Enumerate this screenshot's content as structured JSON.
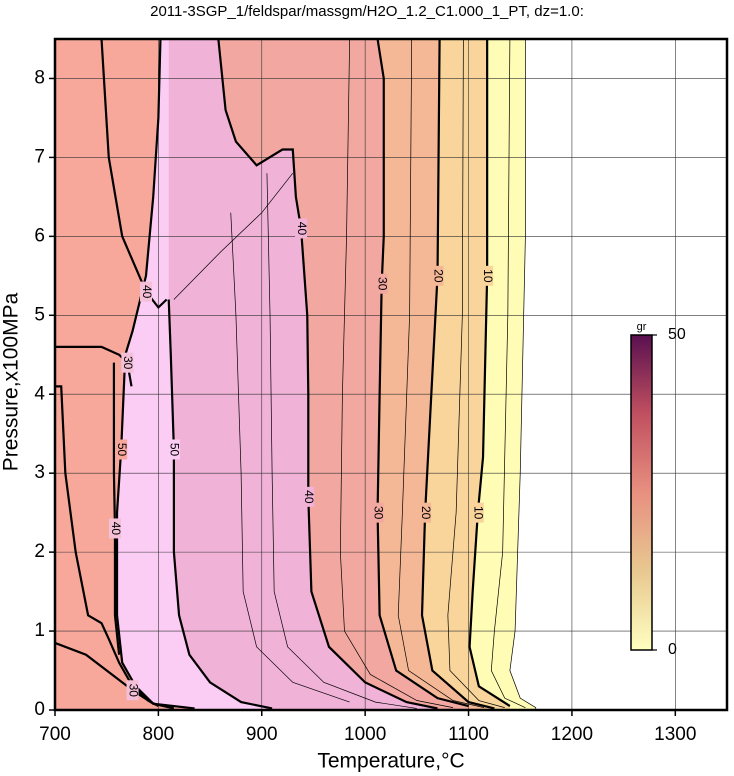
{
  "chart_data": {
    "type": "contour",
    "title": "2011-3SGP_1/feldspar/massgm/H2O_1.2_C1.000_1_PT, dz=1.0:",
    "x_label": "Temperature,°C",
    "y_label": "Pressure,x100MPa",
    "xlim": [
      700,
      1350
    ],
    "ylim": [
      0,
      8.5
    ],
    "xticks": [
      700,
      800,
      900,
      1000,
      1100,
      1200,
      1300
    ],
    "yticks": [
      0,
      1,
      2,
      3,
      4,
      5,
      6,
      7,
      8
    ],
    "grid": true,
    "colorbar": {
      "label": "gr",
      "lim": [
        0,
        50
      ],
      "ticks": [
        0,
        50
      ],
      "colors": [
        "#ffffc0",
        "#e8c890",
        "#e89080",
        "#c05060",
        "#5a1050"
      ]
    },
    "contours": [
      {
        "level": 0,
        "fill": "#fffcb5",
        "x": [
          1155,
          1155,
          1150,
          1145,
          1140,
          1150,
          1165,
          1165
        ],
        "y": [
          8.5,
          6,
          3,
          1,
          0.5,
          0.15,
          0.03,
          0
        ]
      },
      {
        "level": 5,
        "x": [
          1140,
          1138,
          1133,
          1125,
          1122,
          1135,
          1155
        ],
        "y": [
          8.5,
          5,
          2,
          1,
          0.5,
          0.15,
          0.03
        ]
      },
      {
        "level": 10,
        "fill": "#f9d59c",
        "x": [
          1118,
          1118,
          1114,
          1109,
          1104,
          1101,
          1110,
          1140
        ],
        "y": [
          8.5,
          5.5,
          3.2,
          2.5,
          1.5,
          0.8,
          0.3,
          0.05
        ]
      },
      {
        "level": 15,
        "x": [
          1095,
          1094,
          1088,
          1080,
          1082,
          1110,
          1135
        ],
        "y": [
          8.5,
          5,
          2.5,
          1.2,
          0.5,
          0.12,
          0.03
        ]
      },
      {
        "level": 20,
        "fill": "#f5b896",
        "x": [
          1072,
          1070,
          1064,
          1058,
          1055,
          1065,
          1100,
          1125
        ],
        "y": [
          8.5,
          5.5,
          4,
          2.5,
          1.2,
          0.5,
          0.1,
          0.02
        ]
      },
      {
        "level": 25,
        "x": [
          1045,
          1043,
          1036,
          1032,
          1042,
          1085,
          1115
        ],
        "y": [
          8.5,
          5,
          2.5,
          1.2,
          0.5,
          0.12,
          0.03
        ]
      },
      {
        "level": 30,
        "fill": "#f2a8a0",
        "x": [
          1012,
          1018,
          1018,
          1016,
          1014,
          1012,
          1014,
          1030,
          1070,
          1100
        ],
        "y": [
          8.5,
          8,
          6,
          5.4,
          4,
          2.5,
          1.2,
          0.5,
          0.15,
          0.05
        ]
      },
      {
        "level": 35,
        "x": [
          985,
          982,
          978,
          976,
          980,
          1005,
          1050,
          1085
        ],
        "y": [
          8.5,
          6,
          4,
          2,
          1,
          0.45,
          0.12,
          0.03
        ]
      },
      {
        "level": 40,
        "fill": "#f1b2d8",
        "x": [
          858,
          865,
          875,
          895,
          920,
          930,
          933,
          938,
          944,
          945,
          945,
          948,
          965,
          1000,
          1040,
          1070
        ],
        "y": [
          8.5,
          7.6,
          7.2,
          6.9,
          7.1,
          7.1,
          6.5,
          6.1,
          5,
          4,
          2.7,
          1.5,
          0.8,
          0.35,
          0.1,
          0.02
        ]
      },
      {
        "level": 45,
        "x": [
          905,
          908,
          910,
          912,
          925,
          960,
          1010,
          1050
        ],
        "y": [
          6.8,
          5,
          3,
          1.5,
          0.8,
          0.35,
          0.1,
          0.02
        ]
      },
      {
        "level": 47,
        "x": [
          870,
          875,
          880,
          882,
          895,
          930,
          985
        ],
        "y": [
          6.3,
          5,
          3,
          1.5,
          0.8,
          0.35,
          0.1
        ]
      },
      {
        "level": 50,
        "fill": "#fbcdf4",
        "x": [
          810,
          812,
          815,
          815,
          820,
          830,
          850,
          880,
          910
        ],
        "y": [
          5.2,
          4.5,
          3.3,
          2,
          1.2,
          0.7,
          0.35,
          0.1,
          0.02
        ]
      },
      {
        "level": 50,
        "fill": "#f7a89a",
        "x": [
          802,
          800,
          795,
          788,
          775,
          768,
          764,
          760,
          760,
          765,
          778,
          795,
          835
        ],
        "y": [
          8.5,
          7.5,
          6.5,
          5.5,
          4.8,
          4.5,
          3.3,
          2.5,
          1.2,
          0.6,
          0.3,
          0.08,
          0.02
        ]
      },
      {
        "level": 40,
        "x": [
          700,
          706,
          710,
          720,
          732,
          745,
          752,
          762,
          775,
          790,
          800
        ],
        "y": [
          4.1,
          4.1,
          3,
          2,
          1.2,
          1.1,
          0.9,
          0.6,
          0.3,
          0.12,
          0.05
        ]
      },
      {
        "level": 40,
        "x": [
          745,
          752,
          765,
          788,
          800,
          808
        ],
        "y": [
          8.5,
          7,
          6,
          5.3,
          5.1,
          5.2
        ]
      },
      {
        "level": 40,
        "x": [
          757,
          757,
          758,
          758,
          762
        ],
        "y": [
          4.4,
          3,
          2.3,
          1.2,
          0.7
        ]
      },
      {
        "level": 30,
        "x": [
          700,
          745,
          762,
          770,
          774
        ],
        "y": [
          4.6,
          4.6,
          4.5,
          4.4,
          4.1
        ]
      },
      {
        "level": 30,
        "x": [
          700,
          730,
          760,
          775,
          795,
          815
        ],
        "y": [
          0.85,
          0.7,
          0.4,
          0.25,
          0.08,
          0.02
        ]
      },
      {
        "level": 45,
        "x": [
          815,
          860,
          900,
          930
        ],
        "y": [
          5.2,
          5.8,
          6.3,
          6.8
        ]
      }
    ]
  }
}
